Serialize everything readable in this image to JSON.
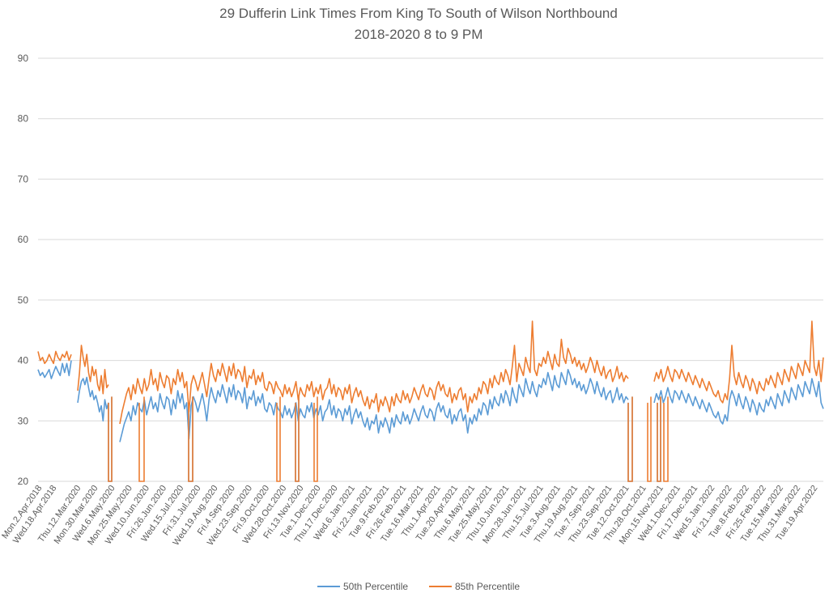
{
  "chart_data": {
    "type": "line",
    "title": "29 Dufferin Link Times From King To South of Wilson Northbound",
    "subtitle": "2018-2020 8 to 9 PM",
    "xlabel": "",
    "ylabel": "",
    "ylim": [
      20,
      90
    ],
    "yticks": [
      20,
      30,
      40,
      50,
      60,
      70,
      80,
      90
    ],
    "grid": true,
    "legend_position": "bottom",
    "x_categories": [
      "Mon.2.Apr.2018",
      "Wed.18.Apr.2018",
      "Thu.12.Mar.2020",
      "Mon.30.Mar.2020",
      "Wed.6.May.2020",
      "Mon.25.May.2020",
      "Wed.10.Jun.2020",
      "Fri.26.Jun.2020",
      "Wed.15.Jul.2020",
      "Fri.31.Jul.2020",
      "Wed.19.Aug.2020",
      "Fri.4.Sep.2020",
      "Wed.23.Sep.2020",
      "Fri.9.Oct.2020",
      "Wed.28.Oct.2020",
      "Fri.13.Nov.2020",
      "Tue.1.Dec.2020",
      "Thu.17.Dec.2020",
      "Wed.6.Jan.2021",
      "Fri.22.Jan.2021",
      "Tue.9.Feb.2021",
      "Fri.26.Feb.2021",
      "Tue.16.Mar.2021",
      "Thu.1.Apr.2021",
      "Tue.20.Apr.2021",
      "Thu.6.May.2021",
      "Tue.25.May.2021",
      "Thu.10.Jun.2021",
      "Mon.28.Jun.2021",
      "Thu.15.Jul.2021",
      "Tue.3.Aug.2021",
      "Thu.19.Aug.2021",
      "Tue.7.Sep.2021",
      "Thu.23.Sep.2021",
      "Tue.12.Oct.2021",
      "Thu.28.Oct.2021",
      "Mon.15.Nov.2021",
      "Wed.1.Dec.2021",
      "Fri.17.Dec.2021",
      "Wed.5.Jan.2022",
      "Fri.21.Jan.2022",
      "Tue.8.Feb.2022",
      "Fri.25.Feb.2022",
      "Tue.15.Mar.2022",
      "Thu.31.Mar.2022",
      "Tue.19.Apr.2022"
    ],
    "series": [
      {
        "name": "50th Percentile",
        "color": "#5b9bd5",
        "segments": [
          [
            38.5,
            37.5,
            38.0,
            37.2,
            37.8,
            38.5,
            37.0,
            38.0,
            39.0,
            38.2,
            37.5,
            39.5,
            38.0,
            39.5,
            37.5,
            40.0
          ],
          [
            33.0,
            35.0,
            36.5,
            37.0,
            36.0,
            37.2,
            35.5,
            34.0,
            35.0,
            33.5,
            34.2,
            33.0,
            31.5,
            32.5,
            30.0,
            33.5,
            32.0,
            33.0
          ],
          [
            26.5,
            28.0,
            29.5,
            30.5,
            31.5,
            30.0,
            32.5,
            31.0,
            33.0,
            32.0,
            31.5,
            33.5,
            31.0,
            32.5,
            34.0,
            32.0,
            33.0,
            31.5,
            34.5,
            33.0,
            32.0,
            34.0,
            33.5,
            31.0,
            33.5,
            32.0,
            35.0,
            33.0,
            34.5,
            32.0,
            33.0,
            27.0,
            32.5,
            34.0,
            33.0,
            31.5,
            33.0,
            34.5,
            32.5,
            30.0,
            33.5,
            35.5,
            34.0,
            33.0,
            35.0,
            34.0,
            36.0,
            34.5,
            33.0,
            35.5,
            34.0,
            36.0,
            33.5,
            35.0,
            34.5,
            33.0,
            35.5,
            32.0,
            34.0,
            33.5,
            35.0,
            32.5,
            34.0,
            33.0,
            34.5,
            32.0,
            31.5,
            33.0,
            32.5,
            31.0,
            33.0,
            32.0,
            31.5,
            30.5,
            32.5,
            31.0,
            32.0,
            30.5,
            31.5,
            33.0,
            30.0,
            32.0,
            31.0,
            30.5,
            32.5,
            31.5,
            33.0,
            30.5,
            32.0,
            31.0,
            32.5,
            30.0,
            31.5,
            32.0,
            33.5,
            31.0,
            32.5,
            30.5,
            32.0,
            31.5,
            30.0,
            32.0,
            31.0,
            32.5,
            29.5,
            31.0,
            32.0,
            30.5,
            31.5,
            30.0,
            29.0,
            30.5,
            28.5,
            30.0,
            29.5,
            31.0,
            28.0,
            30.0,
            29.0,
            30.5,
            29.5,
            28.0,
            30.5,
            29.0,
            31.0,
            30.0,
            29.5,
            31.5,
            30.0,
            31.0,
            29.5,
            30.5,
            32.0,
            31.0,
            30.0,
            31.5,
            32.5,
            31.0,
            30.5,
            32.0,
            31.5,
            30.0,
            32.0,
            33.0,
            31.5,
            32.5,
            31.0,
            30.5,
            32.0,
            29.5,
            31.0,
            30.0,
            31.5,
            32.0,
            30.0,
            31.0,
            28.0,
            30.5,
            29.5,
            31.0,
            30.0,
            32.0,
            31.0,
            33.0,
            32.5,
            31.0,
            33.5,
            32.0,
            34.0,
            33.0,
            32.5,
            34.5,
            33.0,
            35.0,
            34.0,
            32.5,
            35.5,
            34.0,
            33.0,
            36.0,
            35.0,
            34.0,
            37.0,
            35.5,
            34.5,
            36.5,
            35.0,
            34.0,
            36.0,
            35.5,
            37.0,
            36.0,
            38.0,
            36.5,
            35.0,
            37.5,
            36.0,
            35.5,
            38.0,
            37.0,
            36.0,
            38.5,
            37.5,
            36.0,
            37.0,
            35.5,
            36.5,
            35.0,
            36.0,
            34.5,
            35.5,
            37.0,
            36.0,
            34.5,
            36.5,
            35.0,
            34.0,
            35.5,
            33.5,
            34.5,
            35.0,
            33.0,
            34.0,
            35.5,
            33.5,
            34.5,
            33.0,
            34.0,
            33.5
          ],
          [
            33.0,
            34.5,
            33.5,
            35.0,
            33.0,
            34.0,
            35.5,
            34.0,
            33.0,
            35.0,
            34.5,
            33.5,
            35.0,
            34.0,
            33.0,
            34.5,
            33.5,
            32.5,
            34.0,
            33.0,
            32.0,
            33.5,
            32.5,
            31.5,
            33.0,
            32.0,
            31.0,
            30.5,
            31.5,
            30.0,
            29.5,
            31.0,
            30.0,
            33.5,
            35.0,
            34.0,
            32.5,
            34.5,
            33.0,
            32.0,
            34.0,
            33.0,
            31.5,
            33.5,
            32.5,
            31.0,
            33.0,
            32.0,
            31.5,
            33.5,
            32.5,
            34.0,
            33.0,
            32.0,
            34.5,
            33.5,
            32.5,
            35.0,
            34.0,
            33.0,
            35.5,
            34.5,
            33.5,
            36.0,
            35.0,
            34.0,
            36.5,
            35.5,
            34.5,
            37.0,
            35.5,
            34.0,
            36.5,
            33.0,
            32.0
          ]
        ]
      },
      {
        "name": "85th Percentile",
        "color": "#ed7d31",
        "segments": [
          [
            41.5,
            40.0,
            40.5,
            39.5,
            40.0,
            41.0,
            40.2,
            39.5,
            41.5,
            40.5,
            40.0,
            41.0,
            40.5,
            41.5,
            40.0,
            41.0
          ],
          [
            35.0,
            38.0,
            42.5,
            40.5,
            39.0,
            41.0,
            38.0,
            36.5,
            39.0,
            37.5,
            38.5,
            36.0,
            35.0,
            37.5,
            34.5,
            38.5,
            35.5,
            36.0
          ],
          [
            29.5,
            31.5,
            33.0,
            34.5,
            35.5,
            33.5,
            36.0,
            34.5,
            37.0,
            35.5,
            34.5,
            37.0,
            35.0,
            36.0,
            38.5,
            36.0,
            37.0,
            35.0,
            38.0,
            36.5,
            35.5,
            37.5,
            37.0,
            34.5,
            37.0,
            36.0,
            38.5,
            36.5,
            38.0,
            35.5,
            36.5,
            31.5,
            36.0,
            37.5,
            36.5,
            35.0,
            36.5,
            38.0,
            36.0,
            34.0,
            37.0,
            39.5,
            37.5,
            36.5,
            38.5,
            37.5,
            39.5,
            38.0,
            36.5,
            39.0,
            37.5,
            39.5,
            37.0,
            38.5,
            38.0,
            36.5,
            39.0,
            35.5,
            37.5,
            37.0,
            38.5,
            36.0,
            37.5,
            36.5,
            38.0,
            35.5,
            35.0,
            36.5,
            36.0,
            34.5,
            36.5,
            35.5,
            35.0,
            34.0,
            36.0,
            34.5,
            35.5,
            34.0,
            35.0,
            36.5,
            33.5,
            35.5,
            34.5,
            34.0,
            36.0,
            35.0,
            36.5,
            34.0,
            35.5,
            34.5,
            36.0,
            33.5,
            35.0,
            35.5,
            37.0,
            34.5,
            36.0,
            34.0,
            35.5,
            35.0,
            33.5,
            35.5,
            34.5,
            36.0,
            33.0,
            34.5,
            35.5,
            34.0,
            35.0,
            33.5,
            32.5,
            34.0,
            32.0,
            33.5,
            33.0,
            34.5,
            31.5,
            33.5,
            32.5,
            34.0,
            33.0,
            31.5,
            34.0,
            32.5,
            34.5,
            33.5,
            33.0,
            35.0,
            33.5,
            34.5,
            33.0,
            34.0,
            35.5,
            34.5,
            33.5,
            35.0,
            36.0,
            34.5,
            34.0,
            35.5,
            35.0,
            33.5,
            35.5,
            36.5,
            35.0,
            36.0,
            34.5,
            34.0,
            35.5,
            33.0,
            34.5,
            33.5,
            35.0,
            35.5,
            33.5,
            34.5,
            31.5,
            34.0,
            33.0,
            34.5,
            33.5,
            35.5,
            34.5,
            36.5,
            36.0,
            34.5,
            37.0,
            35.5,
            37.5,
            36.5,
            36.0,
            38.0,
            36.5,
            38.5,
            37.5,
            36.0,
            39.0,
            42.5,
            36.5,
            39.5,
            38.5,
            37.5,
            40.5,
            39.0,
            38.0,
            46.5,
            38.5,
            37.5,
            39.5,
            39.0,
            40.5,
            39.5,
            41.5,
            40.0,
            38.5,
            41.0,
            39.5,
            39.0,
            43.5,
            40.5,
            39.5,
            42.0,
            41.0,
            39.5,
            40.5,
            39.0,
            40.0,
            38.5,
            39.5,
            38.0,
            39.0,
            40.5,
            39.5,
            38.0,
            40.0,
            38.5,
            37.5,
            39.0,
            37.0,
            38.0,
            38.5,
            36.5,
            37.5,
            39.0,
            37.0,
            38.0,
            36.5,
            37.5,
            37.0
          ],
          [
            36.5,
            38.0,
            37.0,
            38.5,
            36.5,
            37.5,
            39.0,
            37.5,
            36.5,
            38.5,
            38.0,
            37.0,
            38.5,
            37.5,
            36.5,
            38.0,
            37.0,
            36.0,
            37.5,
            36.5,
            35.5,
            37.0,
            36.0,
            35.0,
            36.5,
            35.5,
            34.5,
            34.0,
            35.0,
            33.5,
            33.0,
            34.5,
            33.5,
            37.0,
            42.5,
            37.5,
            36.0,
            38.0,
            36.5,
            35.5,
            37.5,
            36.5,
            35.0,
            37.0,
            36.0,
            34.5,
            36.5,
            35.5,
            35.0,
            37.0,
            36.0,
            37.5,
            36.5,
            35.5,
            38.0,
            37.0,
            36.0,
            38.5,
            37.5,
            36.5,
            39.0,
            38.0,
            37.0,
            39.5,
            38.5,
            37.5,
            40.0,
            39.0,
            38.0,
            46.5,
            39.0,
            37.5,
            40.0,
            36.5,
            40.5
          ]
        ]
      }
    ],
    "gaps_to_floor": [
      1,
      2,
      3,
      5,
      6,
      7,
      8,
      9,
      10,
      11
    ]
  }
}
